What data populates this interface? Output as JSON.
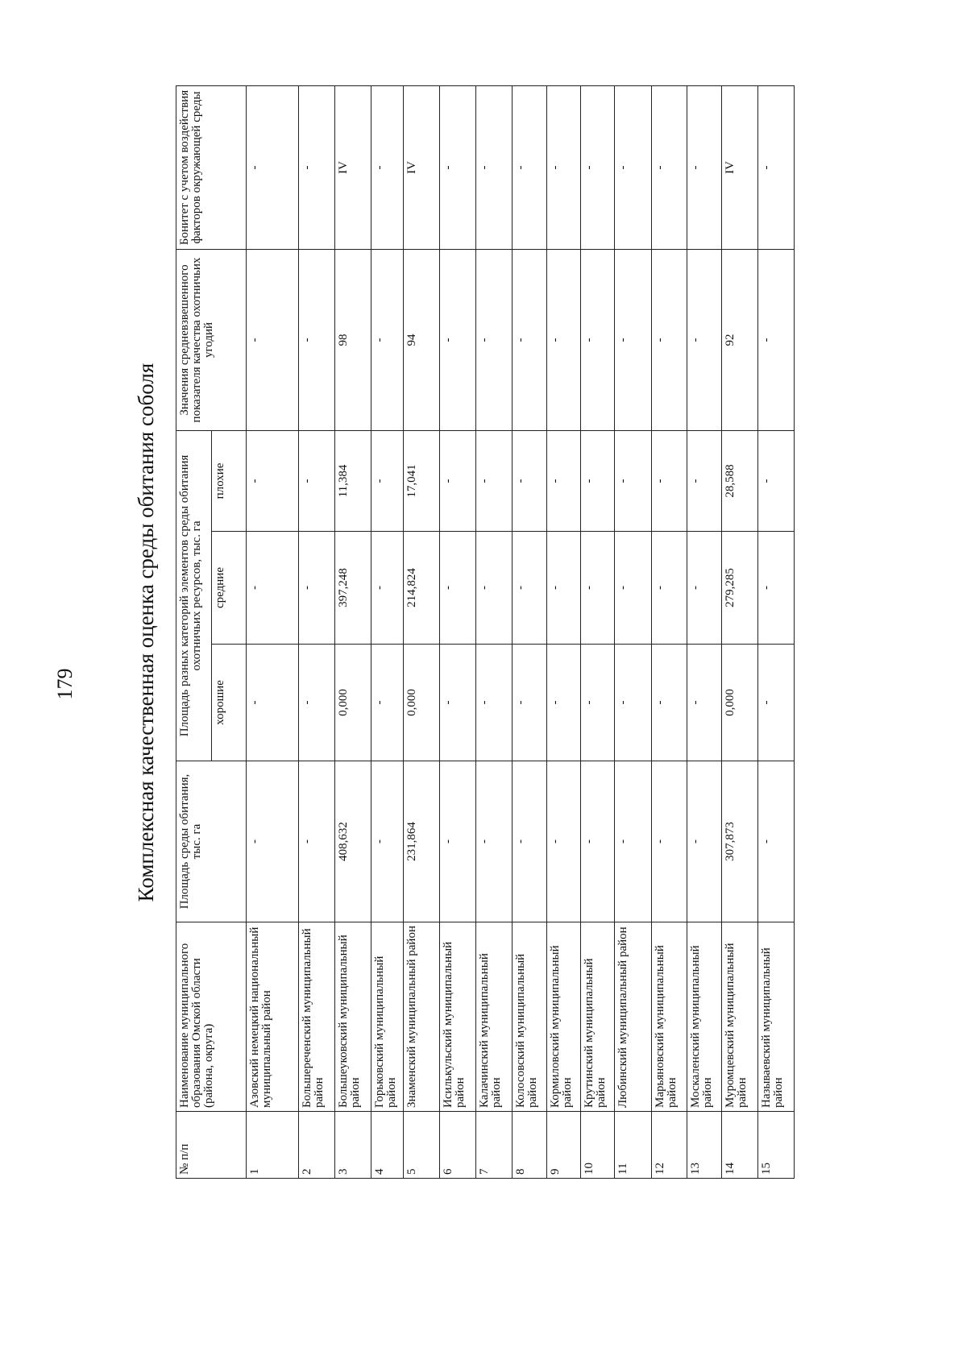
{
  "page_number": "179",
  "title": "Комплексная качественная оценка среды обитания соболя",
  "table": {
    "header": [
      "№ п/п",
      "Наименование муниципального образования Омской области (района, округа)",
      "Площадь среды обитания, тыс. га",
      "Площадь разных категорий элементов среды обитания охотничьих ресурсов, тыс. га",
      "Значения средневзвешенного показателя качества охотничьих угодий",
      "Бонитет с учетом воздействия факторов окружающей среды"
    ],
    "subheader": [
      "хорошие",
      "средние",
      "плохие"
    ],
    "rows": [
      [
        "1",
        "Азовский немецкий национальный муниципальный район",
        "-",
        "-",
        "-",
        "-",
        "-",
        "-"
      ],
      [
        "2",
        "Большереченский муниципальный район",
        "-",
        "-",
        "-",
        "-",
        "-",
        "-"
      ],
      [
        "3",
        "Большеуковский муниципальный район",
        "408,632",
        "0,000",
        "397,248",
        "11,384",
        "98",
        "IV"
      ],
      [
        "4",
        "Горьковский муниципальный район",
        "-",
        "-",
        "-",
        "-",
        "-",
        "-"
      ],
      [
        "5",
        "Знаменский муниципальный район",
        "231,864",
        "0,000",
        "214,824",
        "17,041",
        "94",
        "IV"
      ],
      [
        "6",
        "Исилькульский муниципальный район",
        "-",
        "-",
        "-",
        "-",
        "-",
        "-"
      ],
      [
        "7",
        "Калачинский муниципальный район",
        "-",
        "-",
        "-",
        "-",
        "-",
        "-"
      ],
      [
        "8",
        "Колосовский муниципальный район",
        "-",
        "-",
        "-",
        "-",
        "-",
        "-"
      ],
      [
        "9",
        "Кормиловский муниципальный район",
        "-",
        "-",
        "-",
        "-",
        "-",
        "-"
      ],
      [
        "10",
        "Крутинский муниципальный район",
        "-",
        "-",
        "-",
        "-",
        "-",
        "-"
      ],
      [
        "11",
        "Любинский муниципальный район",
        "-",
        "-",
        "-",
        "-",
        "-",
        "-"
      ],
      [
        "12",
        "Марьяновский муниципальный район",
        "-",
        "-",
        "-",
        "-",
        "-",
        "-"
      ],
      [
        "13",
        "Москаленский муниципальный район",
        "-",
        "-",
        "-",
        "-",
        "-",
        "-"
      ],
      [
        "14",
        "Муромцевский муниципальный район",
        "307,873",
        "0,000",
        "279,285",
        "28,588",
        "92",
        "IV"
      ],
      [
        "15",
        "Называевский муниципальный район",
        "-",
        "-",
        "-",
        "-",
        "-",
        "-"
      ]
    ]
  }
}
